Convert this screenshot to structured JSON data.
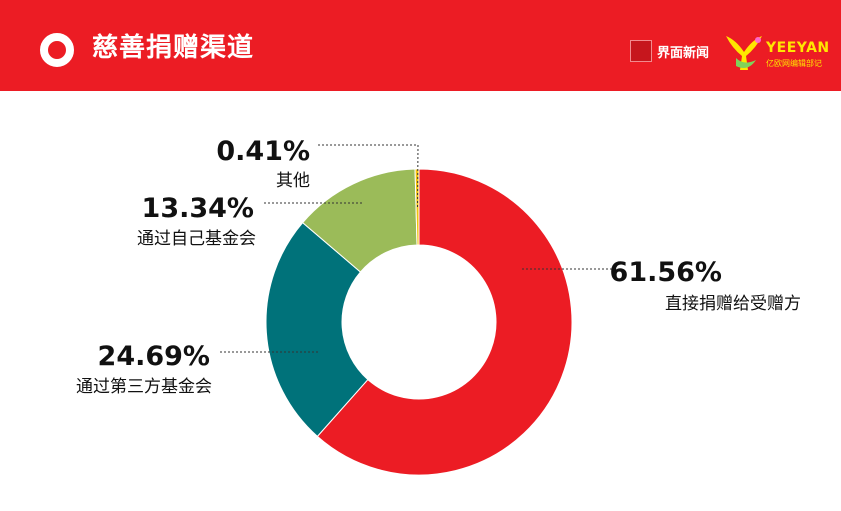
{
  "header": {
    "title": "慈善捐赠渠道",
    "brand_jiemian": "界面新闻",
    "brand_yeeyan_name": "YEEYAN",
    "brand_yeeyan_sub": "亿欧网编辑部记"
  },
  "colors": {
    "header_bg": "#ec1c24",
    "direct": "#ec1c24",
    "third_party": "#00727a",
    "own_foundation": "#9bbb59",
    "other": "#f2c10f"
  },
  "chart_data": {
    "type": "pie",
    "variant": "donut",
    "title": "慈善捐赠渠道",
    "start_angle_deg": 0,
    "direction": "clockwise",
    "slices": [
      {
        "label": "直接捐赠给受赠方",
        "value": 61.56,
        "value_label": "61.56%",
        "color": "#ec1c24"
      },
      {
        "label": "通过第三方基金会",
        "value": 24.69,
        "value_label": "24.69%",
        "color": "#00727a"
      },
      {
        "label": "通过自己基金会",
        "value": 13.34,
        "value_label": "13.34%",
        "color": "#9bbb59"
      },
      {
        "label": "其他",
        "value": 0.41,
        "value_label": "0.41%",
        "color": "#f2c10f"
      }
    ]
  }
}
